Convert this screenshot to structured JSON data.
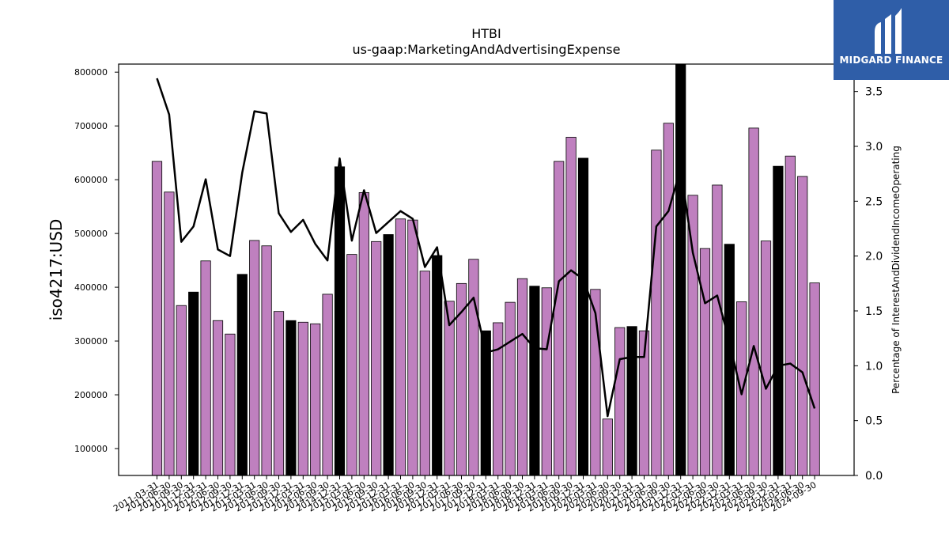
{
  "chart_data": {
    "type": "bar",
    "title": "HTBI",
    "subtitle": "us-gaap:MarketingAndAdvertisingExpense",
    "ylabel": "iso4217:USD",
    "y2label": "Percentage of InterestAndDividendIncomeOperating",
    "ylim": [
      50000,
      815000
    ],
    "y2lim": [
      0,
      3.75
    ],
    "yticks": [
      100000,
      200000,
      300000,
      400000,
      500000,
      600000,
      700000,
      800000
    ],
    "y2ticks": [
      0.0,
      0.5,
      1.0,
      1.5,
      2.0,
      2.5,
      3.0,
      3.5
    ],
    "y2tick_labels": [
      "0.0",
      "0.5",
      "1.0",
      "1.5",
      "2.0",
      "2.5",
      "3.0",
      "3.5"
    ],
    "bar_color": "#bf80bf",
    "highlight_color": "#000000",
    "line_color": "#000000",
    "categories": [
      "2011-03-31",
      "2011-06-30",
      "2011-09-30",
      "2011-12-31",
      "2012-03-31",
      "2012-06-30",
      "2012-09-30",
      "2012-12-31",
      "2013-03-31",
      "2013-06-30",
      "2013-09-30",
      "2013-12-31",
      "2014-03-31",
      "2014-06-30",
      "2014-09-30",
      "2014-12-31",
      "2015-03-31",
      "2015-06-30",
      "2015-09-30",
      "2015-12-31",
      "2016-03-31",
      "2016-06-30",
      "2016-09-30",
      "2016-12-31",
      "2017-03-31",
      "2017-06-30",
      "2017-09-30",
      "2017-12-31",
      "2018-03-31",
      "2018-06-30",
      "2018-09-30",
      "2018-12-31",
      "2019-03-31",
      "2019-06-30",
      "2019-09-30",
      "2019-12-31",
      "2020-03-31",
      "2020-06-30",
      "2020-09-30",
      "2020-12-31",
      "2021-03-31",
      "2021-06-30",
      "2021-09-30",
      "2021-12-31",
      "2022-03-31",
      "2022-06-30",
      "2022-09-30",
      "2022-12-31",
      "2023-03-31",
      "2023-06-30",
      "2023-09-30",
      "2023-12-31",
      "2024-03-31",
      "2024-06-30",
      "2024-09-30"
    ],
    "series": [
      {
        "values": [
          634000,
          577000,
          366000,
          391000,
          449000,
          338000,
          313000,
          424000,
          487000,
          477000,
          355000,
          338000,
          335000,
          332000,
          387000,
          624000,
          461000,
          576000,
          485000,
          498000,
          527000,
          525000,
          430000,
          459000,
          374000,
          407000,
          452000,
          319000,
          334000,
          372000,
          416000,
          402000,
          399000,
          634000,
          679000,
          640000,
          396000,
          155000,
          325000,
          327000,
          319000,
          655000,
          705000,
          815000,
          571000,
          472000,
          590000,
          480000,
          373000,
          696000,
          486000,
          625000,
          644000,
          606000,
          408000
        ],
        "highlight": [
          false,
          false,
          false,
          true,
          false,
          false,
          false,
          true,
          false,
          false,
          false,
          true,
          false,
          false,
          false,
          true,
          false,
          false,
          false,
          true,
          false,
          false,
          false,
          true,
          false,
          false,
          false,
          true,
          false,
          false,
          false,
          true,
          false,
          false,
          false,
          true,
          false,
          false,
          false,
          true,
          false,
          false,
          false,
          true,
          false,
          false,
          false,
          true,
          false,
          false,
          false,
          true,
          false,
          false,
          false
        ]
      },
      {
        "axis": "right",
        "type": "line",
        "values": [
          3.62,
          3.29,
          2.13,
          2.27,
          2.7,
          2.06,
          2.0,
          2.76,
          3.32,
          3.3,
          2.39,
          2.22,
          2.33,
          2.11,
          1.96,
          2.89,
          2.14,
          2.6,
          2.21,
          2.31,
          2.41,
          2.34,
          1.9,
          2.08,
          1.37,
          1.49,
          1.62,
          1.12,
          1.15,
          1.22,
          1.29,
          1.16,
          1.15,
          1.77,
          1.87,
          1.79,
          1.48,
          0.54,
          1.06,
          1.08,
          1.08,
          2.27,
          2.41,
          2.8,
          2.03,
          1.57,
          1.64,
          1.22,
          0.74,
          1.18,
          0.79,
          1.0,
          1.02,
          0.94,
          0.61
        ]
      }
    ],
    "legend": "none",
    "grid": false
  },
  "logo": {
    "text": "MIDGARD FINANCE",
    "color": "#2f5ea8"
  }
}
